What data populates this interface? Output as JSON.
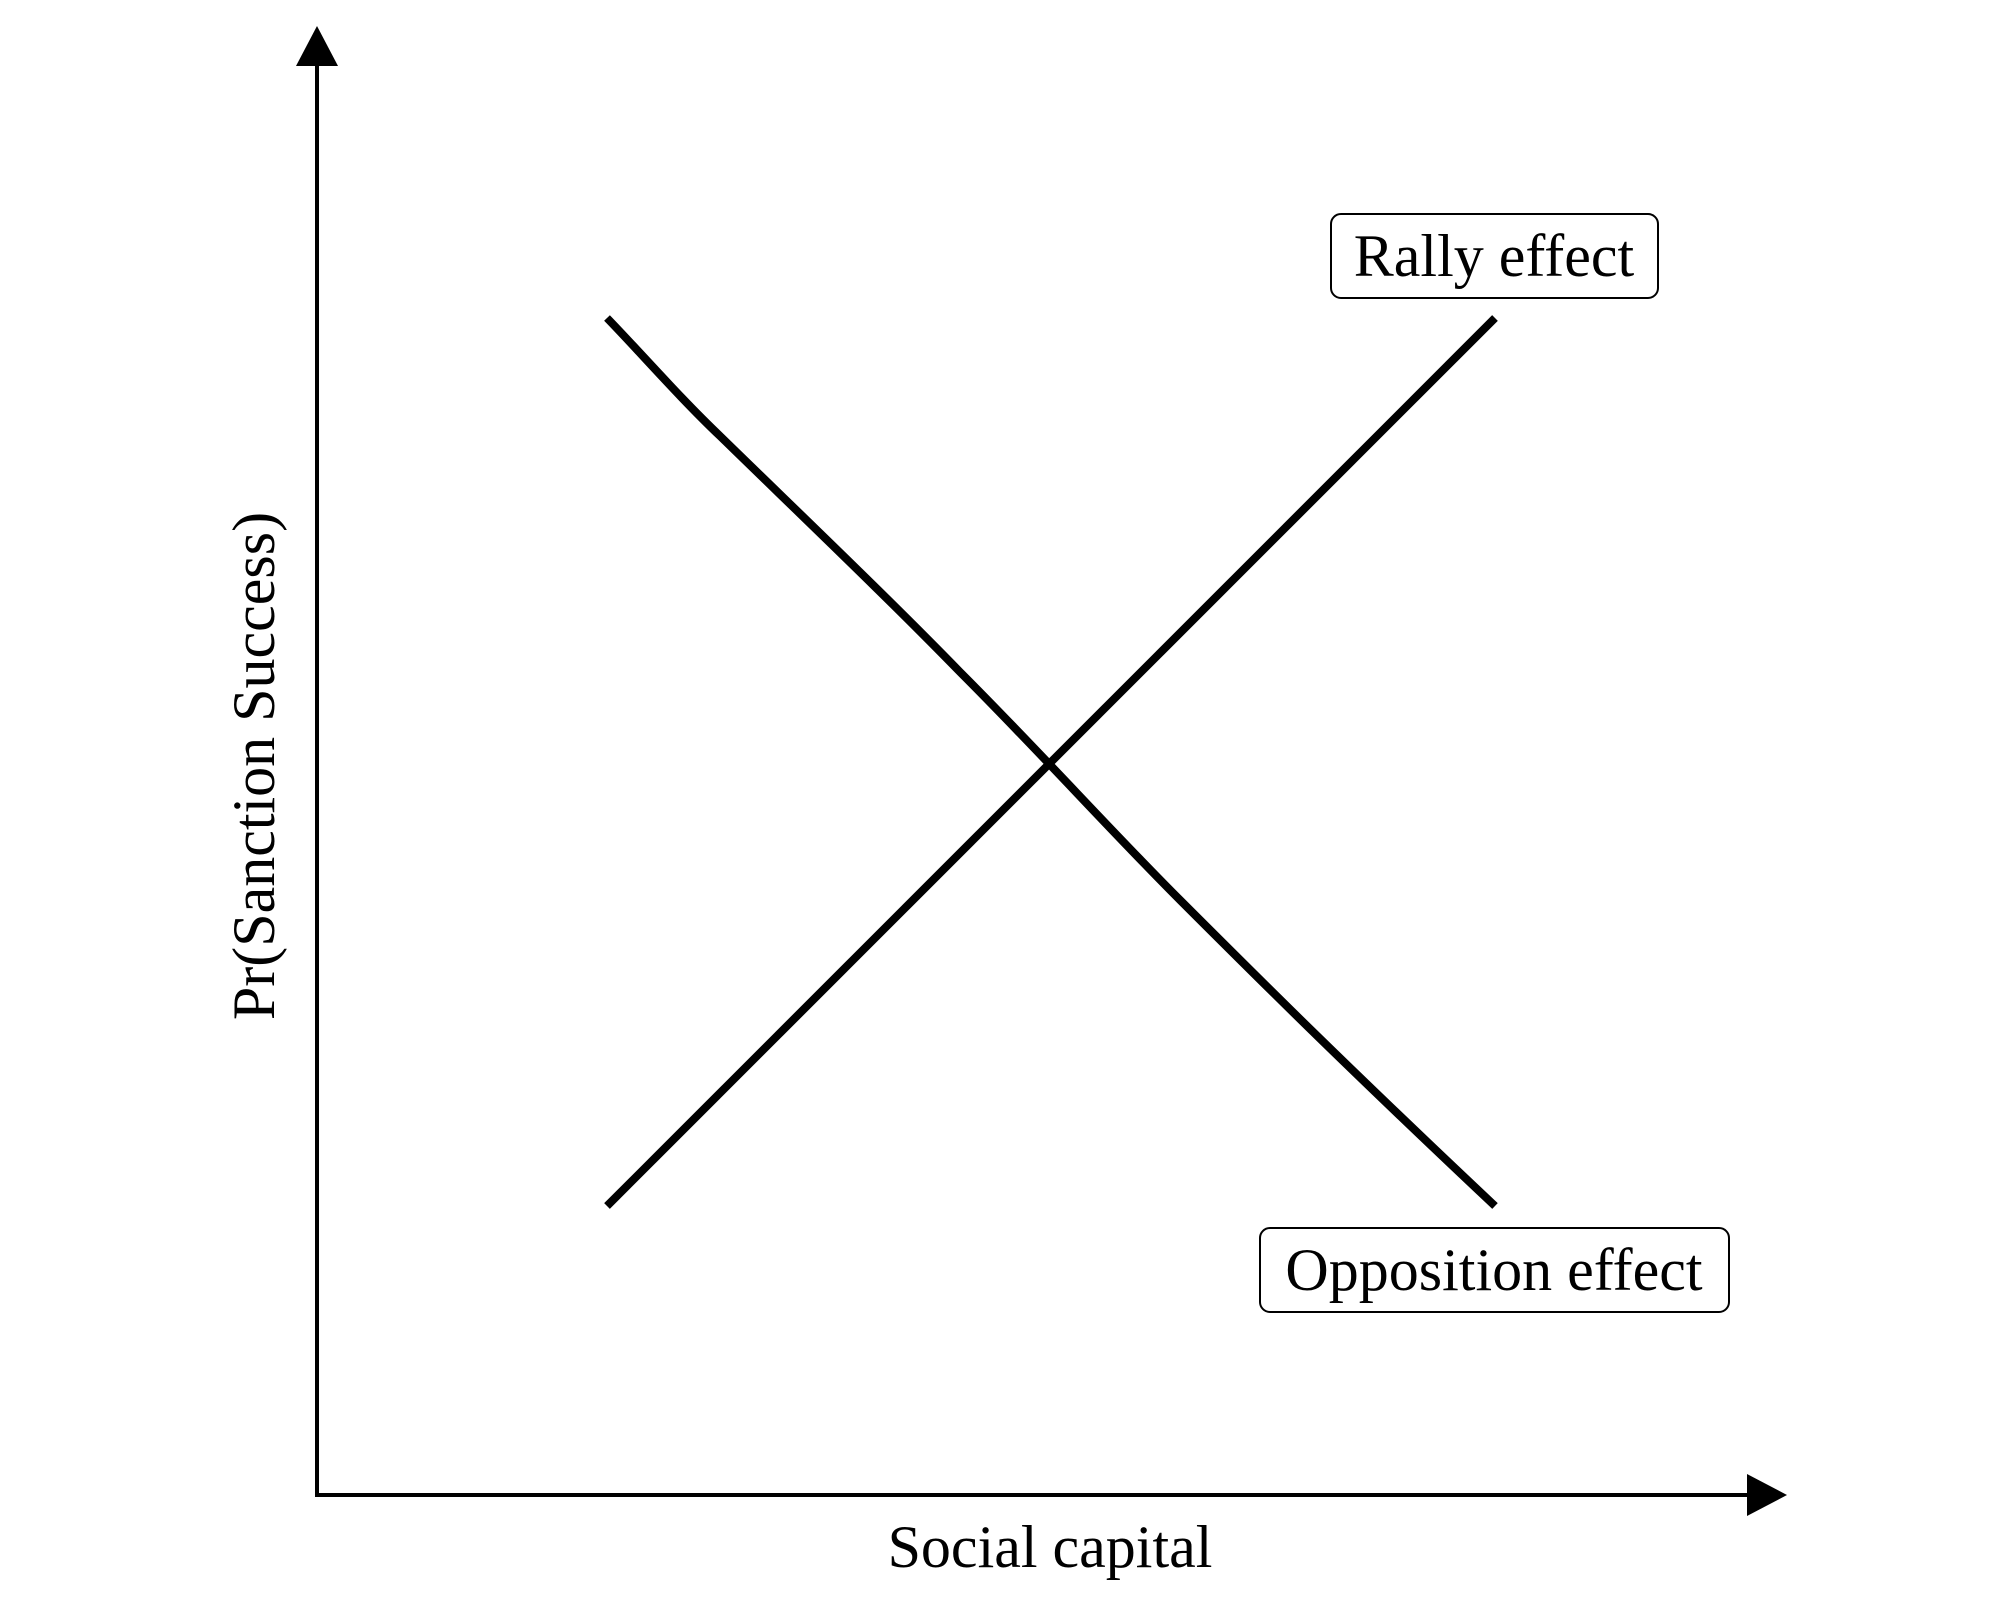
{
  "diagram": {
    "x_axis_label": "Social capital",
    "y_axis_label": "Pr(Sanction Success)",
    "curves": [
      {
        "name": "Rally effect",
        "direction": "increasing"
      },
      {
        "name": "Opposition effect",
        "direction": "decreasing"
      }
    ],
    "colors": {
      "line": "#000000",
      "background": "#ffffff",
      "label_box": "#ffffff"
    }
  }
}
